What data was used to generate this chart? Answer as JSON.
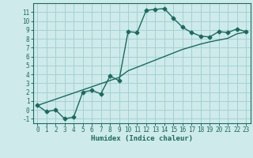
{
  "xlabel": "Humidex (Indice chaleur)",
  "background_color": "#ceeaea",
  "line_color": "#1a6b5e",
  "grid_color": "#9ecece",
  "x_humidex": [
    0,
    1,
    2,
    3,
    4,
    5,
    6,
    7,
    8,
    9,
    10,
    11,
    12,
    13,
    14,
    15,
    16,
    17,
    18,
    19,
    20,
    21,
    22,
    23
  ],
  "y_curve": [
    0.5,
    -0.2,
    0.0,
    -1.0,
    -0.8,
    2.0,
    2.2,
    1.8,
    3.8,
    3.3,
    8.8,
    8.7,
    11.2,
    11.3,
    11.4,
    10.3,
    9.3,
    8.7,
    8.3,
    8.2,
    8.8,
    8.7,
    9.1,
    8.8
  ],
  "y_line": [
    0.5,
    0.85,
    1.2,
    1.55,
    1.9,
    2.25,
    2.6,
    2.95,
    3.3,
    3.65,
    4.4,
    4.8,
    5.2,
    5.6,
    6.0,
    6.4,
    6.8,
    7.1,
    7.4,
    7.65,
    7.85,
    8.05,
    8.55,
    8.75
  ],
  "xlim": [
    -0.5,
    23.5
  ],
  "ylim": [
    -1.5,
    12.0
  ],
  "yticks": [
    -1,
    0,
    1,
    2,
    3,
    4,
    5,
    6,
    7,
    8,
    9,
    10,
    11
  ],
  "xticks": [
    0,
    1,
    2,
    3,
    4,
    5,
    6,
    7,
    8,
    9,
    10,
    11,
    12,
    13,
    14,
    15,
    16,
    17,
    18,
    19,
    20,
    21,
    22,
    23
  ],
  "tick_fontsize": 5.5,
  "xlabel_fontsize": 6.5,
  "marker_size": 2.5,
  "line_width": 1.0
}
